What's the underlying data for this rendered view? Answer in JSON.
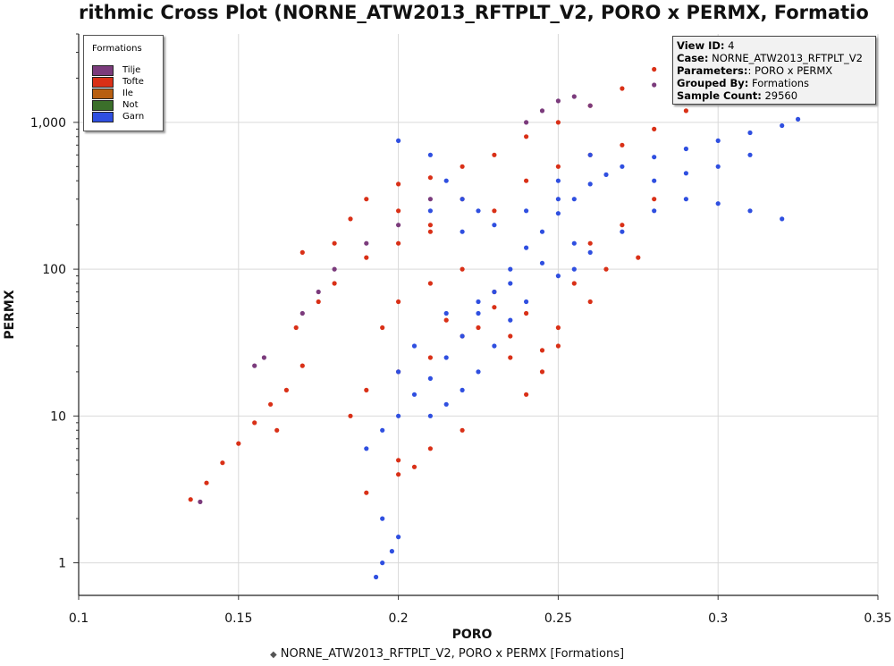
{
  "window": {
    "title": "rithmic Cross Plot (NORNE_ATW2013_RFTPLT_V2, PORO x PERMX, Formatio"
  },
  "legend": {
    "title": "Formations",
    "items": [
      {
        "label": "Tilje",
        "color": "#7b3b7c"
      },
      {
        "label": "Tofte",
        "color": "#d93017"
      },
      {
        "label": "Ile",
        "color": "#b85f10"
      },
      {
        "label": "Not",
        "color": "#3b6f2a"
      },
      {
        "label": "Garn",
        "color": "#2f4fe0"
      }
    ]
  },
  "info": {
    "view_id_label": "View ID:",
    "view_id": "4",
    "case_label": "Case:",
    "case": "NORNE_ATW2013_RFTPLT_V2",
    "parameters_label": "Parameters:",
    "parameters": ": PORO x PERMX",
    "grouped_by_label": "Grouped By:",
    "grouped_by": "Formations",
    "sample_count_label": "Sample Count:",
    "sample_count": "29560"
  },
  "footer": {
    "marker": "◆",
    "label": "NORNE_ATW2013_RFTPLT_V2, PORO x PERMX [Formations]"
  },
  "chart_data": {
    "type": "scatter",
    "xlabel": "PORO",
    "ylabel": "PERMX",
    "xlim": [
      0.1,
      0.35
    ],
    "ylim": [
      0.6,
      4000
    ],
    "y_scale": "log",
    "grid": true,
    "legend_placement": "top-left",
    "x_ticks": [
      "0.1",
      "0.15",
      "0.2",
      "0.25",
      "0.3",
      "0.35"
    ],
    "y_ticks": [
      {
        "value": 1,
        "label": "1"
      },
      {
        "value": 10,
        "label": "10"
      },
      {
        "value": 100,
        "label": "100"
      },
      {
        "value": 1000,
        "label": "1,000"
      }
    ],
    "series": [
      {
        "name": "Tofte",
        "color": "#d93017",
        "points": [
          [
            0.135,
            2.7
          ],
          [
            0.14,
            3.5
          ],
          [
            0.145,
            4.8
          ],
          [
            0.15,
            6.5
          ],
          [
            0.155,
            9
          ],
          [
            0.16,
            12
          ],
          [
            0.162,
            8
          ],
          [
            0.165,
            15
          ],
          [
            0.17,
            22
          ],
          [
            0.168,
            40
          ],
          [
            0.175,
            60
          ],
          [
            0.18,
            80
          ],
          [
            0.17,
            130
          ],
          [
            0.18,
            150
          ],
          [
            0.185,
            220
          ],
          [
            0.19,
            300
          ],
          [
            0.2,
            380
          ],
          [
            0.21,
            420
          ],
          [
            0.22,
            500
          ],
          [
            0.23,
            600
          ],
          [
            0.24,
            800
          ],
          [
            0.25,
            1000
          ],
          [
            0.26,
            1300
          ],
          [
            0.27,
            1700
          ],
          [
            0.28,
            2300
          ],
          [
            0.29,
            2800
          ],
          [
            0.3,
            3300
          ],
          [
            0.2,
            250
          ],
          [
            0.21,
            200
          ],
          [
            0.22,
            300
          ],
          [
            0.23,
            250
          ],
          [
            0.24,
            400
          ],
          [
            0.25,
            500
          ],
          [
            0.26,
            600
          ],
          [
            0.27,
            700
          ],
          [
            0.28,
            900
          ],
          [
            0.29,
            1200
          ],
          [
            0.3,
            1600
          ],
          [
            0.31,
            2200
          ],
          [
            0.19,
            120
          ],
          [
            0.2,
            150
          ],
          [
            0.21,
            180
          ],
          [
            0.195,
            40
          ],
          [
            0.2,
            60
          ],
          [
            0.21,
            80
          ],
          [
            0.22,
            100
          ],
          [
            0.23,
            70
          ],
          [
            0.24,
            50
          ],
          [
            0.235,
            35
          ],
          [
            0.245,
            28
          ],
          [
            0.25,
            40
          ],
          [
            0.2,
            20
          ],
          [
            0.21,
            25
          ],
          [
            0.19,
            15
          ],
          [
            0.185,
            10
          ],
          [
            0.2,
            5
          ],
          [
            0.21,
            6
          ],
          [
            0.22,
            8
          ],
          [
            0.19,
            3
          ],
          [
            0.2,
            4
          ],
          [
            0.205,
            4.5
          ],
          [
            0.26,
            150
          ],
          [
            0.27,
            200
          ],
          [
            0.28,
            300
          ],
          [
            0.265,
            100
          ],
          [
            0.275,
            120
          ],
          [
            0.255,
            80
          ],
          [
            0.26,
            60
          ],
          [
            0.25,
            30
          ],
          [
            0.245,
            20
          ],
          [
            0.24,
            14
          ],
          [
            0.235,
            25
          ],
          [
            0.225,
            40
          ],
          [
            0.23,
            55
          ],
          [
            0.22,
            35
          ],
          [
            0.215,
            45
          ]
        ]
      },
      {
        "name": "Garn",
        "color": "#2f4fe0",
        "points": [
          [
            0.19,
            6
          ],
          [
            0.195,
            8
          ],
          [
            0.2,
            10
          ],
          [
            0.205,
            14
          ],
          [
            0.21,
            18
          ],
          [
            0.215,
            25
          ],
          [
            0.22,
            35
          ],
          [
            0.225,
            50
          ],
          [
            0.23,
            70
          ],
          [
            0.235,
            100
          ],
          [
            0.24,
            140
          ],
          [
            0.245,
            180
          ],
          [
            0.25,
            240
          ],
          [
            0.255,
            300
          ],
          [
            0.26,
            380
          ],
          [
            0.265,
            440
          ],
          [
            0.27,
            500
          ],
          [
            0.28,
            580
          ],
          [
            0.29,
            660
          ],
          [
            0.3,
            750
          ],
          [
            0.31,
            850
          ],
          [
            0.32,
            950
          ],
          [
            0.325,
            1050
          ],
          [
            0.2,
            750
          ],
          [
            0.21,
            600
          ],
          [
            0.215,
            400
          ],
          [
            0.22,
            300
          ],
          [
            0.225,
            250
          ],
          [
            0.23,
            200
          ],
          [
            0.24,
            250
          ],
          [
            0.25,
            300
          ],
          [
            0.21,
            250
          ],
          [
            0.22,
            180
          ],
          [
            0.195,
            2
          ],
          [
            0.2,
            1.5
          ],
          [
            0.198,
            1.2
          ],
          [
            0.195,
            1.0
          ],
          [
            0.193,
            0.8
          ],
          [
            0.21,
            10
          ],
          [
            0.215,
            12
          ],
          [
            0.22,
            15
          ],
          [
            0.225,
            20
          ],
          [
            0.23,
            30
          ],
          [
            0.235,
            45
          ],
          [
            0.24,
            60
          ],
          [
            0.25,
            90
          ],
          [
            0.255,
            100
          ],
          [
            0.26,
            130
          ],
          [
            0.27,
            180
          ],
          [
            0.28,
            250
          ],
          [
            0.29,
            300
          ],
          [
            0.3,
            280
          ],
          [
            0.31,
            250
          ],
          [
            0.32,
            220
          ],
          [
            0.28,
            400
          ],
          [
            0.29,
            450
          ],
          [
            0.3,
            500
          ],
          [
            0.31,
            600
          ],
          [
            0.25,
            400
          ],
          [
            0.26,
            600
          ],
          [
            0.255,
            150
          ],
          [
            0.245,
            110
          ],
          [
            0.235,
            80
          ],
          [
            0.225,
            60
          ],
          [
            0.215,
            50
          ],
          [
            0.205,
            30
          ],
          [
            0.2,
            20
          ]
        ]
      },
      {
        "name": "Tilje",
        "color": "#7b3b7c",
        "points": [
          [
            0.138,
            2.6
          ],
          [
            0.155,
            22
          ],
          [
            0.158,
            25
          ],
          [
            0.17,
            50
          ],
          [
            0.175,
            70
          ],
          [
            0.18,
            100
          ],
          [
            0.19,
            150
          ],
          [
            0.2,
            200
          ],
          [
            0.21,
            300
          ],
          [
            0.24,
            1000
          ],
          [
            0.245,
            1200
          ],
          [
            0.25,
            1400
          ],
          [
            0.255,
            1500
          ],
          [
            0.26,
            1300
          ],
          [
            0.28,
            1800
          ],
          [
            0.29,
            2200
          ]
        ]
      },
      {
        "name": "Tofte",
        "color": "#ebaa9d",
        "points": [
          [
            0.31,
            2100
          ],
          [
            0.315,
            2300
          ],
          [
            0.32,
            2500
          ],
          [
            0.325,
            2700
          ],
          [
            0.33,
            2900
          ],
          [
            0.335,
            3000
          ],
          [
            0.305,
            1900
          ]
        ]
      }
    ]
  }
}
